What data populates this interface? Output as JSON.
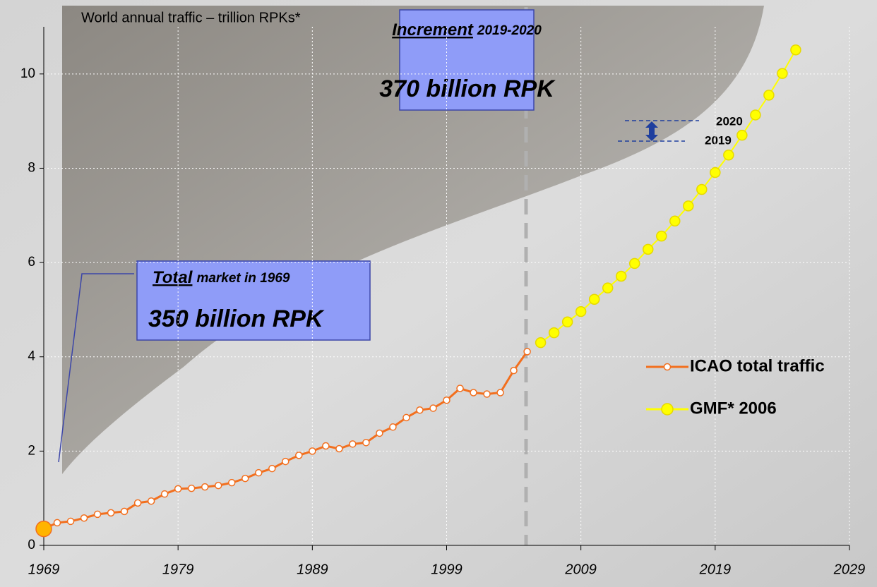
{
  "chart_data": {
    "type": "line",
    "title": "World annual traffic – trillion RPKs*",
    "xlim": [
      1969,
      2029
    ],
    "xticks": [
      1969,
      1979,
      1989,
      1999,
      2009,
      2019,
      2029
    ],
    "ylim": [
      0,
      11
    ],
    "yticks": [
      0,
      2,
      4,
      6,
      8,
      10
    ],
    "grid": true,
    "legend": "right",
    "series": [
      {
        "name": "ICAO total traffic",
        "color": "#f26f1e",
        "x": [
          1969,
          1970,
          1971,
          1972,
          1973,
          1974,
          1975,
          1976,
          1977,
          1978,
          1979,
          1980,
          1981,
          1982,
          1983,
          1984,
          1985,
          1986,
          1987,
          1988,
          1989,
          1990,
          1991,
          1992,
          1993,
          1994,
          1995,
          1996,
          1997,
          1998,
          1999,
          2000,
          2001,
          2002,
          2003,
          2004,
          2005
        ],
        "values": [
          0.35,
          0.48,
          0.51,
          0.58,
          0.66,
          0.69,
          0.72,
          0.9,
          0.94,
          1.09,
          1.2,
          1.21,
          1.24,
          1.27,
          1.33,
          1.42,
          1.54,
          1.63,
          1.78,
          1.91,
          2.0,
          2.11,
          2.05,
          2.15,
          2.18,
          2.38,
          2.51,
          2.71,
          2.87,
          2.91,
          3.08,
          3.33,
          3.24,
          3.21,
          3.24,
          3.71,
          4.11
        ]
      },
      {
        "name": "GMF* 2006",
        "color": "#ffff00",
        "x": [
          2006,
          2007,
          2008,
          2009,
          2010,
          2011,
          2012,
          2013,
          2014,
          2015,
          2016,
          2017,
          2018,
          2019,
          2020,
          2021,
          2022,
          2023,
          2024,
          2025
        ],
        "values": [
          4.3,
          4.51,
          4.74,
          4.96,
          5.22,
          5.46,
          5.71,
          5.98,
          6.28,
          6.56,
          6.88,
          7.2,
          7.55,
          7.91,
          8.28,
          8.7,
          9.13,
          9.55,
          10.01,
          10.51
        ]
      }
    ],
    "annotations": [
      {
        "title": "Increment",
        "subtitle": "2019-2020",
        "text": "370 billion RPK"
      },
      {
        "title": "Total",
        "subtitle": "market in 1969",
        "text": "350 billion RPK"
      }
    ],
    "arrow_labels": [
      "2020",
      "2019"
    ]
  }
}
